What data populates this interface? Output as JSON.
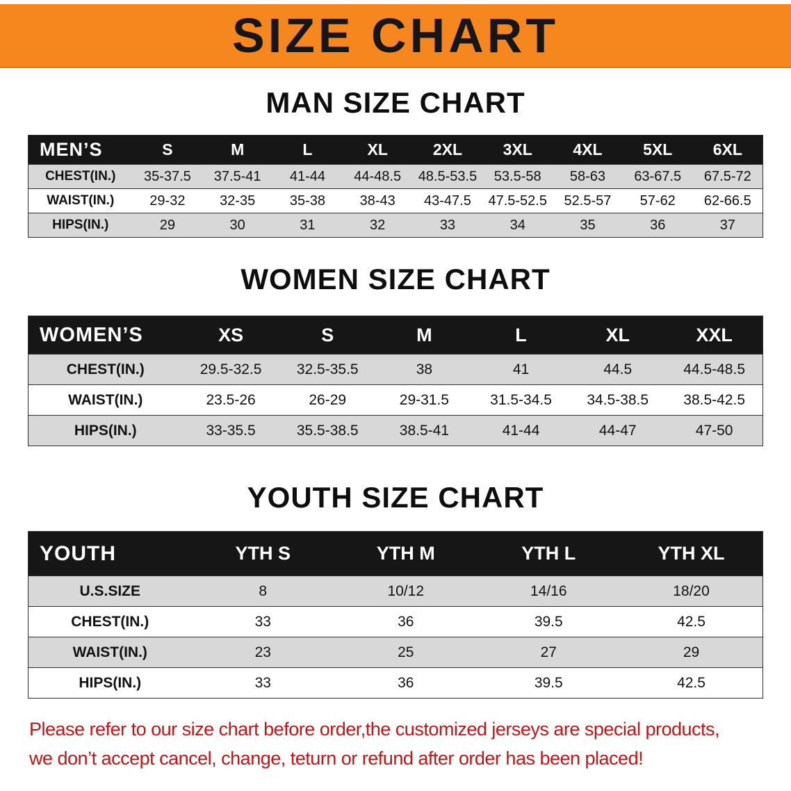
{
  "banner": {
    "title": "SIZE CHART",
    "bg_color": "#f6871f",
    "text_color": "#161616"
  },
  "men": {
    "heading": "MAN SIZE CHART",
    "table": {
      "header": [
        "MEN’S",
        "S",
        "M",
        "L",
        "XL",
        "2XL",
        "3XL",
        "4XL",
        "5XL",
        "6XL"
      ],
      "rows": [
        [
          "CHEST(IN.)",
          "35-37.5",
          "37.5-41",
          "41-44",
          "44-48.5",
          "48.5-53.5",
          "53.5-58",
          "58-63",
          "63-67.5",
          "67.5-72"
        ],
        [
          "WAIST(IN.)",
          "29-32",
          "32-35",
          "35-38",
          "38-43",
          "43-47.5",
          "47.5-52.5",
          "52.5-57",
          "57-62",
          "62-66.5"
        ],
        [
          "HIPS(IN.)",
          "29",
          "30",
          "31",
          "32",
          "33",
          "34",
          "35",
          "36",
          "37"
        ]
      ]
    }
  },
  "women": {
    "heading": "WOMEN SIZE CHART",
    "table": {
      "header": [
        "WOMEN’S",
        "XS",
        "S",
        "M",
        "L",
        "XL",
        "XXL"
      ],
      "rows": [
        [
          "CHEST(IN.)",
          "29.5-32.5",
          "32.5-35.5",
          "38",
          "41",
          "44.5",
          "44.5-48.5"
        ],
        [
          "WAIST(IN.)",
          "23.5-26",
          "26-29",
          "29-31.5",
          "31.5-34.5",
          "34.5-38.5",
          "38.5-42.5"
        ],
        [
          "HIPS(IN.)",
          "33-35.5",
          "35.5-38.5",
          "38.5-41",
          "41-44",
          "44-47",
          "47-50"
        ]
      ]
    }
  },
  "youth": {
    "heading": "YOUTH SIZE CHART",
    "table": {
      "header": [
        "YOUTH",
        "YTH S",
        "YTH M",
        "YTH L",
        "YTH XL"
      ],
      "rows": [
        [
          "U.S.SIZE",
          "8",
          "10/12",
          "14/16",
          "18/20"
        ],
        [
          "CHEST(IN.)",
          "33",
          "36",
          "39.5",
          "42.5"
        ],
        [
          "WAIST(IN.)",
          "23",
          "25",
          "27",
          "29"
        ],
        [
          "HIPS(IN.)",
          "33",
          "36",
          "39.5",
          "42.5"
        ]
      ]
    }
  },
  "footer": {
    "line1": "Please refer to our size chart before order,the customized jerseys are special products,",
    "line2": "we don’t accept cancel, change, teturn or refund after order has been placed!",
    "text_color": "#c41414"
  },
  "colors": {
    "header_bar": "#161616",
    "shaded_row": "#d8d8d8",
    "banner_orange": "#f6871f",
    "warning_red": "#c41414"
  }
}
